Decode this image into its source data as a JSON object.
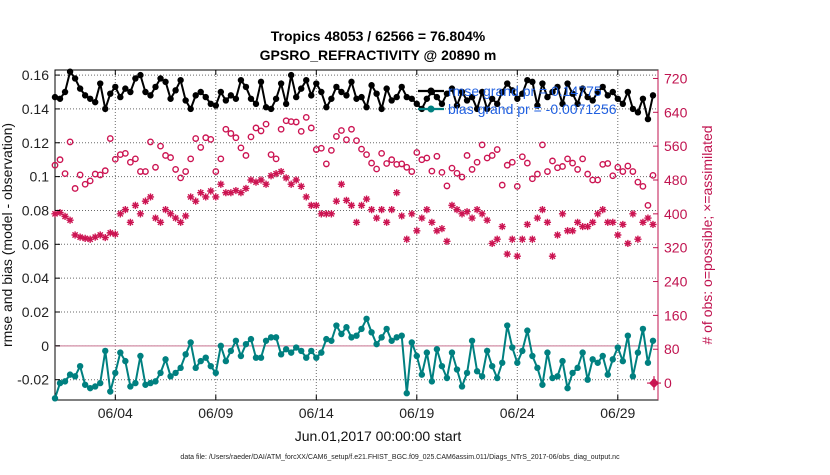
{
  "chart_data": {
    "type": "line",
    "title": "Tropics 48053 / 62566 = 76.804%",
    "subtitle": "GPSRO_REFRACTIVITY @ 20890 m",
    "xlabel": "Jun.01,2017 00:00:00 start",
    "ylabel_left": "rmse and bias (model - observation)",
    "ylabel_right": "# of obs: o=possible; ×=assimilated",
    "footer": "data file: /Users/raeder/DAI/ATM_forcXX/CAM6_setup/f.e21.FHIST_BGC.f09_025.CAM6assim.011/Diags_NTrS_2017-06/obs_diag_output.nc",
    "x_ticks": [
      "06/04",
      "06/09",
      "06/14",
      "06/19",
      "06/24",
      "06/29"
    ],
    "x_tick_days": [
      4,
      9,
      14,
      19,
      24,
      29
    ],
    "xlim_days": [
      1,
      31
    ],
    "left_axis": {
      "ylim": [
        -0.032,
        0.163
      ],
      "ticks": [
        "0.16",
        "0.14",
        "0.12",
        "0.1",
        "0.08",
        "0.06",
        "0.04",
        "0.02",
        "0",
        "-0.02"
      ],
      "tick_values": [
        0.16,
        0.14,
        0.12,
        0.1,
        0.08,
        0.06,
        0.04,
        0.02,
        0,
        -0.02
      ]
    },
    "right_axis": {
      "ylim": [
        -40,
        740
      ],
      "ticks": [
        "720",
        "640",
        "560",
        "480",
        "400",
        "320",
        "240",
        "160",
        "80",
        "0"
      ],
      "tick_values": [
        720,
        640,
        560,
        480,
        400,
        320,
        240,
        160,
        80,
        0
      ]
    },
    "legend": [
      {
        "label": "rmse grand pr = 0.14775",
        "color": "#000000"
      },
      {
        "label": "bias grand pr = -0.0071256",
        "color": "#008080"
      }
    ],
    "series": [
      {
        "name": "rmse",
        "axis": "left",
        "color": "#000000",
        "marker": "filled-circle",
        "t": [
          1.0,
          1.25,
          1.5,
          1.75,
          2.0,
          2.25,
          2.5,
          2.75,
          3.0,
          3.25,
          3.5,
          3.75,
          4.0,
          4.25,
          4.5,
          4.75,
          5.0,
          5.25,
          5.5,
          5.75,
          6.0,
          6.25,
          6.5,
          6.75,
          7.0,
          7.25,
          7.5,
          7.75,
          8.0,
          8.25,
          8.5,
          8.75,
          9.0,
          9.25,
          9.5,
          9.75,
          10.0,
          10.25,
          10.5,
          10.75,
          11.0,
          11.25,
          11.5,
          11.75,
          12.0,
          12.25,
          12.5,
          12.75,
          13.0,
          13.25,
          13.5,
          13.75,
          14.0,
          14.25,
          14.5,
          14.75,
          15.0,
          15.25,
          15.5,
          15.75,
          16.0,
          16.25,
          16.5,
          16.75,
          17.0,
          17.25,
          17.5,
          17.75,
          18.0,
          18.25,
          18.5,
          18.75,
          19.0,
          19.25,
          19.5,
          19.75,
          20.0,
          20.25,
          20.5,
          20.75,
          21.0,
          21.25,
          21.5,
          21.75,
          22.0,
          22.25,
          22.5,
          22.75,
          23.0,
          23.25,
          23.5,
          23.75,
          24.0,
          24.25,
          24.5,
          24.75,
          25.0,
          25.25,
          25.5,
          25.75,
          26.0,
          26.25,
          26.5,
          26.75,
          27.0,
          27.25,
          27.5,
          27.75,
          28.0,
          28.25,
          28.5,
          28.75,
          29.0,
          29.25,
          29.5,
          29.75,
          30.0,
          30.25,
          30.5,
          30.75
        ],
        "values": [
          0.147,
          0.146,
          0.15,
          0.162,
          0.158,
          0.152,
          0.148,
          0.146,
          0.144,
          0.155,
          0.14,
          0.149,
          0.153,
          0.147,
          0.152,
          0.15,
          0.158,
          0.16,
          0.15,
          0.148,
          0.153,
          0.158,
          0.156,
          0.146,
          0.151,
          0.157,
          0.145,
          0.14,
          0.148,
          0.15,
          0.147,
          0.143,
          0.142,
          0.15,
          0.145,
          0.148,
          0.146,
          0.157,
          0.153,
          0.146,
          0.143,
          0.156,
          0.141,
          0.14,
          0.146,
          0.155,
          0.143,
          0.16,
          0.147,
          0.152,
          0.157,
          0.148,
          0.155,
          0.15,
          0.141,
          0.146,
          0.153,
          0.15,
          0.148,
          0.156,
          0.146,
          0.147,
          0.141,
          0.154,
          0.149,
          0.14,
          0.152,
          0.145,
          0.147,
          0.153,
          0.147,
          0.146,
          0.143,
          0.14,
          0.146,
          0.15,
          0.147,
          0.143,
          0.149,
          0.152,
          0.142,
          0.15,
          0.145,
          0.147,
          0.14,
          0.15,
          0.14,
          0.146,
          0.143,
          0.15,
          0.155,
          0.151,
          0.146,
          0.149,
          0.157,
          0.156,
          0.142,
          0.155,
          0.147,
          0.15,
          0.153,
          0.143,
          0.155,
          0.149,
          0.143,
          0.152,
          0.147,
          0.145,
          0.15,
          0.153,
          0.148,
          0.15,
          0.146,
          0.143,
          0.15,
          0.14,
          0.138,
          0.146,
          0.134,
          0.148
        ]
      },
      {
        "name": "bias",
        "axis": "left",
        "color": "#008080",
        "marker": "filled-circle",
        "t": [
          1.0,
          1.25,
          1.5,
          1.75,
          2.0,
          2.25,
          2.5,
          2.75,
          3.0,
          3.25,
          3.5,
          3.75,
          4.0,
          4.25,
          4.5,
          4.75,
          5.0,
          5.25,
          5.5,
          5.75,
          6.0,
          6.25,
          6.5,
          6.75,
          7.0,
          7.25,
          7.5,
          7.75,
          8.0,
          8.25,
          8.5,
          8.75,
          9.0,
          9.25,
          9.5,
          9.75,
          10.0,
          10.25,
          10.5,
          10.75,
          11.0,
          11.25,
          11.5,
          11.75,
          12.0,
          12.25,
          12.5,
          12.75,
          13.0,
          13.25,
          13.5,
          13.75,
          14.0,
          14.25,
          14.5,
          14.75,
          15.0,
          15.25,
          15.5,
          15.75,
          16.0,
          16.25,
          16.5,
          16.75,
          17.0,
          17.25,
          17.5,
          17.75,
          18.0,
          18.25,
          18.5,
          18.75,
          19.0,
          19.25,
          19.5,
          19.75,
          20.0,
          20.25,
          20.5,
          20.75,
          21.0,
          21.25,
          21.5,
          21.75,
          22.0,
          22.25,
          22.5,
          22.75,
          23.0,
          23.25,
          23.5,
          23.75,
          24.0,
          24.25,
          24.5,
          24.75,
          25.0,
          25.25,
          25.5,
          25.75,
          26.0,
          26.25,
          26.5,
          26.75,
          27.0,
          27.25,
          27.5,
          27.75,
          28.0,
          28.25,
          28.5,
          28.75,
          29.0,
          29.25,
          29.5,
          29.75,
          30.0,
          30.25,
          30.5,
          30.75
        ],
        "values": [
          -0.031,
          -0.022,
          -0.021,
          -0.017,
          -0.018,
          -0.012,
          -0.023,
          -0.025,
          -0.024,
          -0.022,
          -0.003,
          -0.027,
          -0.016,
          -0.004,
          -0.009,
          -0.024,
          -0.022,
          -0.006,
          -0.023,
          -0.022,
          -0.021,
          -0.016,
          -0.008,
          -0.018,
          -0.016,
          -0.013,
          -0.005,
          0.002,
          -0.013,
          -0.009,
          -0.007,
          -0.012,
          -0.016,
          0.0,
          -0.009,
          -0.003,
          0.003,
          -0.006,
          0.001,
          0.004,
          -0.007,
          -0.007,
          0.003,
          0.005,
          0.005,
          -0.005,
          -0.002,
          -0.004,
          -0.001,
          -0.003,
          -0.007,
          -0.003,
          -0.007,
          -0.004,
          0.004,
          0.003,
          0.012,
          0.007,
          0.011,
          0.005,
          0.006,
          0.01,
          0.016,
          0.008,
          0.001,
          0.005,
          0.01,
          0.003,
          0.005,
          0.006,
          -0.028,
          0.002,
          -0.006,
          -0.017,
          -0.004,
          -0.021,
          -0.002,
          -0.012,
          -0.019,
          -0.004,
          -0.014,
          -0.024,
          -0.016,
          0.003,
          -0.015,
          -0.018,
          -0.003,
          -0.012,
          -0.019,
          -0.01,
          0.012,
          -0.001,
          -0.01,
          -0.003,
          0.009,
          -0.006,
          -0.013,
          -0.023,
          -0.004,
          -0.019,
          -0.018,
          -0.009,
          -0.025,
          -0.016,
          -0.013,
          -0.004,
          -0.02,
          -0.008,
          -0.01,
          -0.006,
          -0.017,
          -0.008,
          -0.001,
          -0.009,
          0.006,
          -0.018,
          -0.004,
          0.01,
          -0.01,
          0.003
        ]
      },
      {
        "name": "possible",
        "axis": "right",
        "color": "#cc1452",
        "marker": "open-circle",
        "t": [
          1.0,
          1.25,
          1.5,
          1.75,
          2.0,
          2.25,
          2.5,
          2.75,
          3.0,
          3.25,
          3.5,
          3.75,
          4.0,
          4.25,
          4.5,
          4.75,
          5.0,
          5.25,
          5.5,
          5.75,
          6.0,
          6.25,
          6.5,
          6.75,
          7.0,
          7.25,
          7.5,
          7.75,
          8.0,
          8.25,
          8.5,
          8.75,
          9.0,
          9.25,
          9.5,
          9.75,
          10.0,
          10.25,
          10.5,
          10.75,
          11.0,
          11.25,
          11.5,
          11.75,
          12.0,
          12.25,
          12.5,
          12.75,
          13.0,
          13.25,
          13.5,
          13.75,
          14.0,
          14.25,
          14.5,
          14.75,
          15.0,
          15.25,
          15.5,
          15.75,
          16.0,
          16.25,
          16.5,
          16.75,
          17.0,
          17.25,
          17.5,
          17.75,
          18.0,
          18.25,
          18.5,
          18.75,
          19.0,
          19.25,
          19.5,
          19.75,
          20.0,
          20.25,
          20.5,
          20.75,
          21.0,
          21.25,
          21.5,
          21.75,
          22.0,
          22.25,
          22.5,
          22.75,
          23.0,
          23.25,
          23.5,
          23.75,
          24.0,
          24.25,
          24.5,
          24.75,
          25.0,
          25.25,
          25.5,
          25.75,
          26.0,
          26.25,
          26.5,
          26.75,
          27.0,
          27.25,
          27.5,
          27.75,
          28.0,
          28.25,
          28.5,
          28.75,
          29.0,
          29.25,
          29.5,
          29.75,
          30.0,
          30.25,
          30.5,
          30.75
        ],
        "values": [
          515,
          528,
          495,
          570,
          460,
          492,
          470,
          478,
          494,
          492,
          502,
          578,
          529,
          540,
          543,
          522,
          530,
          500,
          500,
          570,
          510,
          560,
          538,
          533,
          505,
          485,
          500,
          530,
          578,
          557,
          580,
          576,
          500,
          530,
          600,
          590,
          580,
          556,
          538,
          582,
          603,
          596,
          612,
          540,
          530,
          600,
          620,
          618,
          617,
          595,
          628,
          603,
          552,
          555,
          518,
          550,
          583,
          597,
          575,
          600,
          573,
          553,
          540,
          520,
          506,
          543,
          519,
          528,
          517,
          518,
          510,
          500,
          545,
          528,
          532,
          501,
          536,
          498,
          466,
          508,
          496,
          487,
          538,
          505,
          522,
          563,
          532,
          538,
          552,
          468,
          515,
          522,
          465,
          535,
          520,
          483,
          494,
          563,
          500,
          525,
          509,
          512,
          530,
          520,
          505,
          530,
          494,
          480,
          480,
          517,
          519,
          490,
          510,
          500,
          513,
          500,
          475,
          465,
          420,
          491
        ]
      },
      {
        "name": "assimilated",
        "axis": "right",
        "color": "#cc1452",
        "marker": "asterisk",
        "t": [
          1.0,
          1.25,
          1.5,
          1.75,
          2.0,
          2.25,
          2.5,
          2.75,
          3.0,
          3.25,
          3.5,
          3.75,
          4.0,
          4.25,
          4.5,
          4.75,
          5.0,
          5.25,
          5.5,
          5.75,
          6.0,
          6.25,
          6.5,
          6.75,
          7.0,
          7.25,
          7.5,
          7.75,
          8.0,
          8.25,
          8.5,
          8.75,
          9.0,
          9.25,
          9.5,
          9.75,
          10.0,
          10.25,
          10.5,
          10.75,
          11.0,
          11.25,
          11.5,
          11.75,
          12.0,
          12.25,
          12.5,
          12.75,
          13.0,
          13.25,
          13.5,
          13.75,
          14.0,
          14.25,
          14.5,
          14.75,
          15.0,
          15.25,
          15.5,
          15.75,
          16.0,
          16.25,
          16.5,
          16.75,
          17.0,
          17.25,
          17.5,
          17.75,
          18.0,
          18.25,
          18.5,
          18.75,
          19.0,
          19.25,
          19.5,
          19.75,
          20.0,
          20.25,
          20.5,
          20.75,
          21.0,
          21.25,
          21.5,
          21.75,
          22.0,
          22.25,
          22.5,
          22.75,
          23.0,
          23.25,
          23.5,
          23.75,
          24.0,
          24.25,
          24.5,
          24.75,
          25.0,
          25.25,
          25.5,
          25.75,
          26.0,
          26.25,
          26.5,
          26.75,
          27.0,
          27.25,
          27.5,
          27.75,
          28.0,
          28.25,
          28.5,
          28.75,
          29.0,
          29.25,
          29.5,
          29.75,
          30.0,
          30.25,
          30.5,
          30.75
        ],
        "values": [
          400,
          403,
          394,
          385,
          350,
          345,
          342,
          340,
          345,
          350,
          344,
          355,
          352,
          400,
          410,
          380,
          420,
          400,
          430,
          440,
          390,
          380,
          410,
          400,
          390,
          380,
          395,
          440,
          430,
          450,
          440,
          454,
          440,
          470,
          450,
          450,
          455,
          450,
          460,
          480,
          475,
          480,
          470,
          490,
          495,
          500,
          485,
          470,
          480,
          465,
          440,
          420,
          420,
          400,
          400,
          400,
          430,
          470,
          432,
          420,
          380,
          420,
          435,
          410,
          390,
          410,
          380,
          410,
          450,
          395,
          340,
          400,
          360,
          390,
          410,
          380,
          360,
          365,
          335,
          420,
          410,
          400,
          405,
          390,
          410,
          400,
          385,
          330,
          340,
          370,
          305,
          340,
          300,
          340,
          375,
          340,
          390,
          410,
          380,
          300,
          350,
          400,
          360,
          360,
          380,
          370,
          370,
          380,
          400,
          410,
          380,
          380,
          350,
          375,
          330,
          400,
          340,
          380,
          390,
          375
        ]
      }
    ],
    "markers": [
      {
        "name": "obs-count-axis-marker",
        "axis": "right",
        "day": 31,
        "value": 0,
        "color": "#cc1452"
      }
    ]
  }
}
